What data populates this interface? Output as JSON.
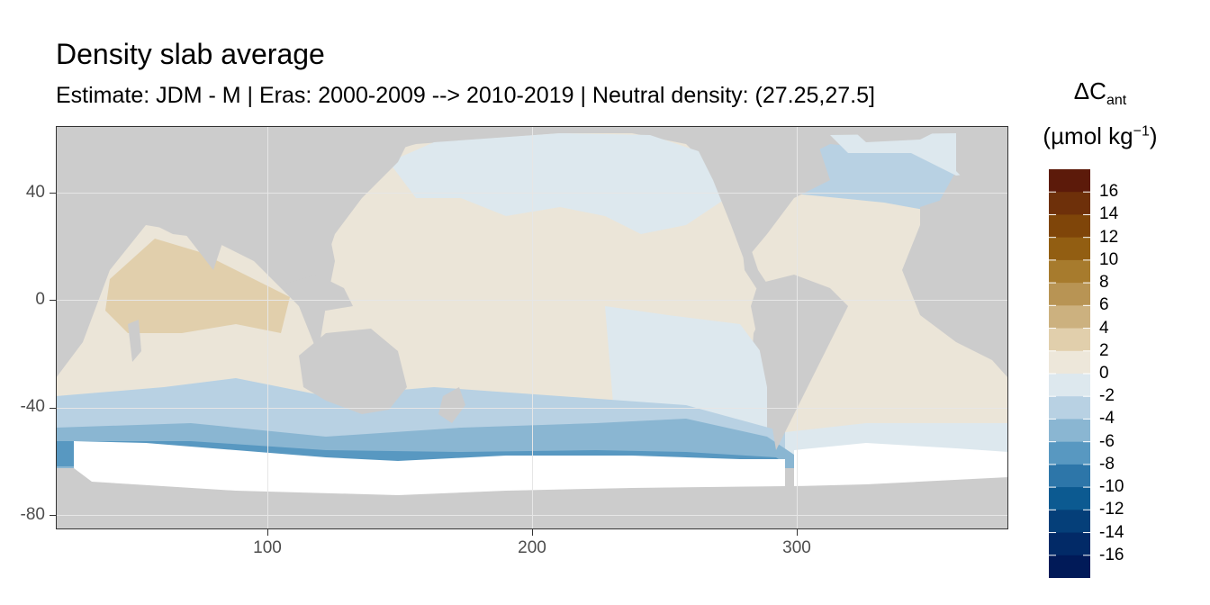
{
  "map": {
    "title": "Density slab average",
    "subtitle": "Estimate: JDM - M | Eras: 2000-2009 --> 2010-2019 | Neutral density: (27.25,27.5]",
    "x_axis": {
      "ticks": [
        "100",
        "200",
        "300"
      ],
      "range": [
        20,
        380
      ]
    },
    "y_axis": {
      "ticks": [
        "40",
        "0",
        "-40",
        "-80"
      ],
      "range": [
        -85,
        65
      ]
    },
    "land_color": "#cccccc",
    "no_data_color": "#ffffff"
  },
  "legend": {
    "title_line1": "ΔC",
    "title_sub": "ant",
    "title_line2_pre": "(µmol kg",
    "title_sup": "−1",
    "title_line2_post": ")",
    "labels": [
      "16",
      "14",
      "12",
      "10",
      "8",
      "6",
      "4",
      "2",
      "0",
      "-2",
      "-4",
      "-6",
      "-8",
      "-10",
      "-12",
      "-14",
      "-16"
    ],
    "colors": [
      "#5c1a0a",
      "#6e300a",
      "#7f4509",
      "#925e12",
      "#a77b2d",
      "#b89454",
      "#ccb17f",
      "#e1cfac",
      "#ede7da",
      "#dde8ee",
      "#b8d1e3",
      "#8ab6d2",
      "#5898c1",
      "#2d76a9",
      "#0c5a91",
      "#053f79",
      "#022a67",
      "#011a58"
    ]
  }
}
